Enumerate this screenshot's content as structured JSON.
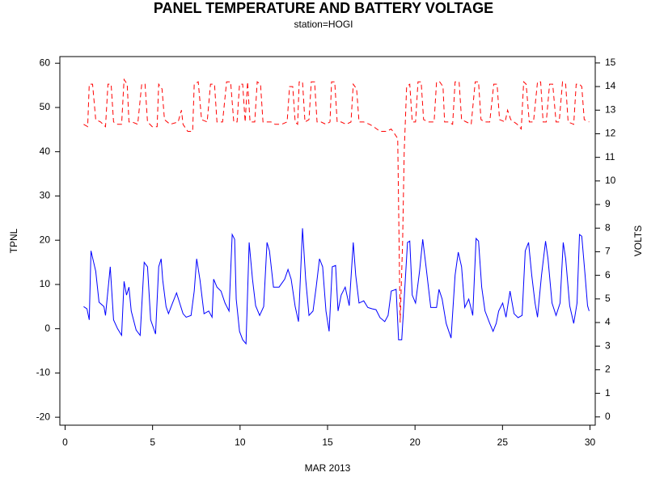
{
  "chart_data": {
    "type": "line",
    "title": "PANEL TEMPERATURE AND BATTERY VOLTAGE",
    "subtitle": "station=HOGI",
    "xlabel": "MAR 2013",
    "ylabel": "TPNL",
    "y2label": "VOLTS",
    "xlim": [
      -0.3,
      30.3
    ],
    "xticks": [
      0,
      5,
      10,
      15,
      20,
      25,
      30
    ],
    "ylim": [
      -21.8,
      61.5
    ],
    "yticks": [
      -20,
      -10,
      0,
      10,
      20,
      30,
      40,
      50,
      60
    ],
    "y2lim": [
      -0.35,
      15.27
    ],
    "y2ticks": [
      0,
      1,
      2,
      3,
      4,
      5,
      6,
      7,
      8,
      9,
      10,
      11,
      12,
      13,
      14,
      15
    ],
    "series": [
      {
        "name": "TPNL",
        "color": "#0000ff",
        "style": "solid",
        "x": [
          1.06,
          1.25,
          1.38,
          1.48,
          1.75,
          1.94,
          2.22,
          2.31,
          2.58,
          2.77,
          3.0,
          3.23,
          3.37,
          3.51,
          3.65,
          3.78,
          4.06,
          4.29,
          4.52,
          4.71,
          4.89,
          5.17,
          5.35,
          5.49,
          5.58,
          5.77,
          5.91,
          6.14,
          6.37,
          6.55,
          6.74,
          6.92,
          7.2,
          7.38,
          7.52,
          7.71,
          7.94,
          8.21,
          8.4,
          8.49,
          8.68,
          8.91,
          9.14,
          9.37,
          9.55,
          9.69,
          9.78,
          9.97,
          10.15,
          10.34,
          10.52,
          10.71,
          10.89,
          11.12,
          11.35,
          11.54,
          11.68,
          11.91,
          12.23,
          12.55,
          12.74,
          12.92,
          13.15,
          13.34,
          13.57,
          13.75,
          13.94,
          14.17,
          14.35,
          14.54,
          14.72,
          14.91,
          15.09,
          15.27,
          15.46,
          15.6,
          15.78,
          16.01,
          16.24,
          16.47,
          16.61,
          16.8,
          17.07,
          17.3,
          17.54,
          17.77,
          18.0,
          18.27,
          18.46,
          18.64,
          18.92,
          19.06,
          19.24,
          19.38,
          19.57,
          19.7,
          19.84,
          20.03,
          20.26,
          20.44,
          20.63,
          20.9,
          21.23,
          21.37,
          21.55,
          21.78,
          22.06,
          22.29,
          22.47,
          22.66,
          22.84,
          23.07,
          23.3,
          23.49,
          23.63,
          23.81,
          24.0,
          24.27,
          24.46,
          24.64,
          24.78,
          25.01,
          25.2,
          25.43,
          25.66,
          25.89,
          26.12,
          26.3,
          26.49,
          26.67,
          26.86,
          27.0,
          27.23,
          27.46,
          27.6,
          27.83,
          28.06,
          28.29,
          28.47,
          28.61,
          28.84,
          29.07,
          29.26,
          29.4,
          29.53,
          29.72,
          29.86,
          29.95
        ],
        "values": [
          5,
          4.5,
          2,
          17.6,
          13,
          6,
          5,
          3,
          14,
          2,
          0,
          -1.5,
          10.7,
          7.6,
          9.4,
          4,
          -0.3,
          -1.5,
          15,
          14,
          2,
          -1.2,
          14,
          15.8,
          11,
          5,
          3.4,
          5.8,
          8.1,
          5.8,
          3.4,
          2.6,
          3,
          8.5,
          15.8,
          11,
          3.4,
          4,
          2.6,
          11.2,
          9.4,
          8.5,
          5.8,
          4,
          21.3,
          20.2,
          6.7,
          -0.6,
          -2.5,
          -3.4,
          19.5,
          11.2,
          5.2,
          3,
          5,
          19.5,
          17.6,
          9.4,
          9.4,
          11.2,
          13.4,
          11.2,
          5,
          1.6,
          22.7,
          11.2,
          3,
          4,
          9.4,
          15.8,
          14,
          4,
          -0.6,
          14,
          14.3,
          4,
          7.6,
          9.4,
          5.2,
          19.5,
          12.1,
          5.8,
          6.3,
          4.8,
          4.5,
          4.3,
          2.5,
          1.6,
          3,
          8.5,
          8.9,
          -2.5,
          -2.5,
          6.7,
          19.5,
          19.8,
          7.6,
          5.8,
          13,
          20.2,
          14,
          4.8,
          4.8,
          8.9,
          6.7,
          1.2,
          -2.1,
          12.1,
          17.3,
          14,
          4.8,
          6.7,
          3,
          20.4,
          19.8,
          9.4,
          4,
          1.2,
          -0.6,
          1.2,
          4,
          5.8,
          2.6,
          8.5,
          3.4,
          2.5,
          3,
          17.6,
          19.5,
          12.1,
          5.8,
          2.6,
          12.1,
          19.8,
          15.8,
          5.8,
          3,
          5.8,
          19.5,
          15.8,
          5.2,
          1.2,
          5.8,
          21.3,
          20.9,
          12.1,
          5.2,
          4
        ]
      },
      {
        "name": "VOLTS",
        "color": "#ff0000",
        "style": "dashed",
        "axis": "y2",
        "x": [
          1.06,
          1.29,
          1.38,
          1.57,
          1.75,
          2.03,
          2.31,
          2.45,
          2.63,
          2.77,
          3.0,
          3.23,
          3.37,
          3.55,
          3.65,
          3.83,
          4.15,
          4.38,
          4.57,
          4.71,
          4.98,
          5.26,
          5.35,
          5.54,
          5.68,
          6.0,
          6.46,
          6.65,
          6.74,
          7.01,
          7.29,
          7.38,
          7.61,
          7.8,
          8.12,
          8.31,
          8.54,
          8.68,
          9.0,
          9.23,
          9.46,
          9.64,
          9.83,
          9.97,
          10.15,
          10.29,
          10.43,
          10.57,
          10.84,
          10.98,
          11.17,
          11.31,
          11.54,
          11.77,
          12.0,
          12.37,
          12.69,
          12.83,
          13.01,
          13.15,
          13.29,
          13.38,
          13.57,
          13.71,
          13.94,
          14.07,
          14.26,
          14.4,
          14.63,
          14.91,
          15.14,
          15.23,
          15.41,
          15.55,
          15.78,
          16.06,
          16.34,
          16.47,
          16.66,
          16.8,
          17.07,
          17.4,
          17.63,
          18.0,
          18.37,
          18.64,
          18.83,
          19.01,
          19.15,
          19.29,
          19.38,
          19.52,
          19.7,
          19.84,
          20.03,
          20.17,
          20.35,
          20.49,
          20.77,
          21.09,
          21.23,
          21.41,
          21.6,
          21.69,
          21.92,
          22.15,
          22.29,
          22.52,
          22.66,
          22.93,
          23.21,
          23.44,
          23.63,
          23.77,
          24.0,
          24.27,
          24.5,
          24.69,
          24.83,
          25.15,
          25.29,
          25.47,
          25.84,
          26.07,
          26.21,
          26.35,
          26.53,
          26.77,
          27.0,
          27.18,
          27.32,
          27.5,
          27.69,
          27.87,
          28.06,
          28.24,
          28.43,
          28.61,
          28.75,
          29.07,
          29.21,
          29.4,
          29.53,
          29.67,
          29.95
        ],
        "values": [
          12.4,
          12.3,
          14.1,
          14.1,
          12.6,
          12.5,
          12.3,
          14.1,
          14.1,
          12.5,
          12.4,
          12.4,
          14.3,
          14.1,
          12.5,
          12.5,
          12.4,
          14.1,
          14.1,
          12.5,
          12.3,
          12.3,
          14.1,
          13.9,
          12.6,
          12.4,
          12.5,
          13.0,
          12.4,
          12.1,
          12.1,
          14.1,
          14.2,
          12.6,
          12.5,
          14.1,
          14.1,
          12.5,
          12.5,
          14.2,
          14.2,
          12.5,
          12.5,
          14.1,
          14.1,
          12.5,
          14.2,
          12.5,
          12.5,
          14.2,
          14.1,
          12.5,
          12.5,
          12.5,
          12.4,
          12.4,
          12.5,
          14.0,
          14.0,
          12.5,
          12.4,
          14.2,
          14.2,
          12.5,
          12.6,
          14.2,
          14.2,
          12.5,
          12.5,
          12.4,
          12.5,
          14.2,
          14.2,
          12.5,
          12.5,
          12.4,
          12.5,
          14.1,
          13.9,
          12.5,
          12.5,
          12.4,
          12.3,
          12.1,
          12.1,
          12.2,
          12.0,
          11.8,
          4.0,
          7.4,
          11.2,
          14.0,
          14.1,
          12.5,
          12.5,
          14.2,
          14.2,
          12.6,
          12.5,
          12.5,
          14.2,
          14.2,
          14.0,
          12.5,
          12.5,
          12.4,
          14.2,
          14.2,
          12.6,
          12.5,
          12.4,
          14.2,
          14.2,
          12.6,
          12.5,
          12.5,
          14.1,
          14.1,
          12.6,
          12.5,
          13.0,
          12.6,
          12.4,
          12.2,
          14.2,
          14.1,
          12.5,
          12.5,
          14.2,
          14.2,
          12.5,
          12.5,
          14.1,
          14.1,
          12.5,
          12.5,
          14.2,
          14.1,
          12.5,
          12.4,
          14.1,
          14.1,
          14.0,
          12.6,
          12.5
        ]
      }
    ]
  }
}
